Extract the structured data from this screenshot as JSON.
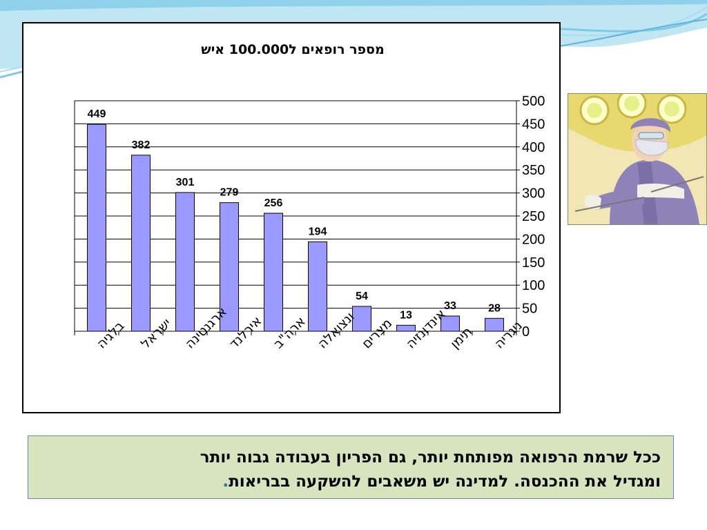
{
  "slide": {
    "caption_lines": [
      "ככל שרמת הרפואה מפותחת יותר, גם הפריון בעבודה גבוה יותר",
      "ומגדיל את ההכנסה. למדינה יש משאבים להשקעה בבריאות"
    ],
    "caption_end_mark": ".",
    "caption_end_mark_color": "#2f6fb5",
    "image_icon": "surgeon-illustration"
  },
  "chart_data": {
    "type": "bar",
    "title": "מספר רופאים ל100.000 איש",
    "categories": [
      "בלגיה",
      "ישראל",
      "ארגנטינה",
      "אירלנד",
      "ארה\"ב",
      "ונצואלה",
      "מצרים",
      "אינדונזיה",
      "תימן",
      "ניגריה"
    ],
    "values": [
      449,
      382,
      301,
      279,
      256,
      194,
      54,
      13,
      33,
      28
    ],
    "ylim": [
      0,
      500
    ],
    "yticks": [
      0,
      50,
      100,
      150,
      200,
      250,
      300,
      350,
      400,
      450,
      500
    ],
    "y_axis_side": "right",
    "grid": true,
    "legend": false,
    "data_labels": true,
    "bar_color": "#9999ff",
    "xlabel": "",
    "ylabel": ""
  }
}
